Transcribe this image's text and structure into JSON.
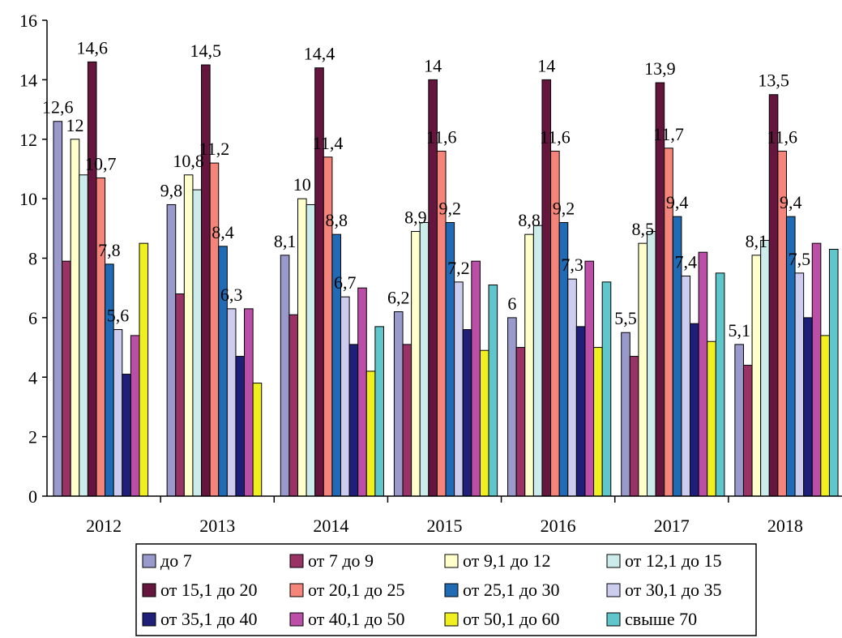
{
  "chart_data": {
    "type": "bar",
    "categories": [
      "2012",
      "2013",
      "2014",
      "2015",
      "2016",
      "2017",
      "2018"
    ],
    "ylim": [
      0,
      16
    ],
    "yticks": [
      "0",
      "2",
      "4",
      "6",
      "8",
      "10",
      "12",
      "14",
      "16"
    ],
    "grid": false,
    "legend_position": "bottom",
    "series": [
      {
        "name": "до 7",
        "color": "#9999cc",
        "values": [
          12.6,
          9.8,
          8.1,
          6.2,
          6,
          5.5,
          5.1
        ]
      },
      {
        "name": "от 7 до 9",
        "color": "#993366",
        "values": [
          7.9,
          6.8,
          6.1,
          5.1,
          5,
          4.7,
          4.4
        ]
      },
      {
        "name": "от 9,1 до 12",
        "color": "#ffffcc",
        "values": [
          12,
          10.8,
          10,
          8.9,
          8.8,
          8.5,
          8.1
        ]
      },
      {
        "name": "от 12,1 до 15",
        "color": "#ccecec",
        "values": [
          10.8,
          10.3,
          9.8,
          9.2,
          9.1,
          8.9,
          8.6
        ]
      },
      {
        "name": "от 15,1 до 20",
        "color": "#66163e",
        "values": [
          14.6,
          14.5,
          14.4,
          14,
          14,
          13.9,
          13.5
        ]
      },
      {
        "name": "от 20,1 до 25",
        "color": "#f5857a",
        "values": [
          10.7,
          11.2,
          11.4,
          11.6,
          11.6,
          11.7,
          11.6
        ]
      },
      {
        "name": "от 25,1 до 30",
        "color": "#1f6bb5",
        "values": [
          7.8,
          8.4,
          8.8,
          9.2,
          9.2,
          9.4,
          9.4
        ]
      },
      {
        "name": "от 30,1 до 35",
        "color": "#ccccee",
        "values": [
          5.6,
          6.3,
          6.7,
          7.2,
          7.3,
          7.4,
          7.5
        ]
      },
      {
        "name": "от 35,1 до 40",
        "color": "#1f1f7a",
        "values": [
          4.1,
          4.7,
          5.1,
          5.6,
          5.7,
          5.8,
          6
        ]
      },
      {
        "name": "от 40,1 до 50",
        "color": "#bb4fa8",
        "values": [
          5.4,
          6.3,
          7,
          7.9,
          7.9,
          8.2,
          8.5
        ]
      },
      {
        "name": "от 50,1 до 60",
        "color": "#f0f020",
        "values": [
          8.5,
          3.8,
          4.2,
          4.9,
          5,
          5.2,
          5.4
        ]
      },
      {
        "name": "свыше 70",
        "color": "#5fc7cc",
        "values": [
          null,
          null,
          5.7,
          7.1,
          7.2,
          7.5,
          8.3
        ]
      }
    ],
    "data_labels": [
      {
        "category": 0,
        "series": 0,
        "text": "12,6"
      },
      {
        "category": 0,
        "series": 2,
        "text": "12"
      },
      {
        "category": 0,
        "series": 4,
        "text": "14,6"
      },
      {
        "category": 0,
        "series": 5,
        "text": "10,7"
      },
      {
        "category": 0,
        "series": 6,
        "text": "7,8"
      },
      {
        "category": 0,
        "series": 7,
        "text": "5,6"
      },
      {
        "category": 1,
        "series": 0,
        "text": "9,8"
      },
      {
        "category": 1,
        "series": 2,
        "text": "10,8"
      },
      {
        "category": 1,
        "series": 4,
        "text": "14,5"
      },
      {
        "category": 1,
        "series": 5,
        "text": "11,2"
      },
      {
        "category": 1,
        "series": 6,
        "text": "8,4"
      },
      {
        "category": 1,
        "series": 7,
        "text": "6,3"
      },
      {
        "category": 2,
        "series": 0,
        "text": "8,1"
      },
      {
        "category": 2,
        "series": 2,
        "text": "10"
      },
      {
        "category": 2,
        "series": 4,
        "text": "14,4"
      },
      {
        "category": 2,
        "series": 5,
        "text": "11,4"
      },
      {
        "category": 2,
        "series": 6,
        "text": "8,8"
      },
      {
        "category": 2,
        "series": 7,
        "text": "6,7"
      },
      {
        "category": 3,
        "series": 0,
        "text": "6,2"
      },
      {
        "category": 3,
        "series": 2,
        "text": "8,9"
      },
      {
        "category": 3,
        "series": 4,
        "text": "14"
      },
      {
        "category": 3,
        "series": 5,
        "text": "11,6"
      },
      {
        "category": 3,
        "series": 6,
        "text": "9,2"
      },
      {
        "category": 3,
        "series": 7,
        "text": "7,2"
      },
      {
        "category": 4,
        "series": 0,
        "text": "6"
      },
      {
        "category": 4,
        "series": 2,
        "text": "8,8"
      },
      {
        "category": 4,
        "series": 4,
        "text": "14"
      },
      {
        "category": 4,
        "series": 5,
        "text": "11,6"
      },
      {
        "category": 4,
        "series": 6,
        "text": "9,2"
      },
      {
        "category": 4,
        "series": 7,
        "text": "7,3"
      },
      {
        "category": 5,
        "series": 0,
        "text": "5,5"
      },
      {
        "category": 5,
        "series": 2,
        "text": "8,5"
      },
      {
        "category": 5,
        "series": 4,
        "text": "13,9"
      },
      {
        "category": 5,
        "series": 5,
        "text": "11,7"
      },
      {
        "category": 5,
        "series": 6,
        "text": "9,4"
      },
      {
        "category": 5,
        "series": 7,
        "text": "7,4"
      },
      {
        "category": 6,
        "series": 0,
        "text": "5,1"
      },
      {
        "category": 6,
        "series": 2,
        "text": "8,1"
      },
      {
        "category": 6,
        "series": 4,
        "text": "13,5"
      },
      {
        "category": 6,
        "series": 5,
        "text": "11,6"
      },
      {
        "category": 6,
        "series": 6,
        "text": "9,4"
      },
      {
        "category": 6,
        "series": 7,
        "text": "7,5"
      }
    ]
  }
}
